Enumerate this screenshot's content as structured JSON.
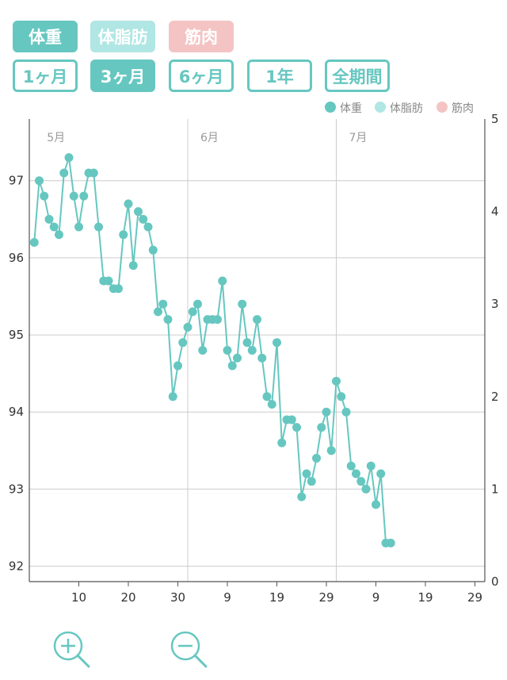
{
  "metrics": {
    "weight": "体重",
    "body_fat": "体脂肪",
    "muscle": "筋肉"
  },
  "periods": {
    "one_month": "1ヶ月",
    "three_months": "3ヶ月",
    "six_months": "6ヶ月",
    "one_year": "1年",
    "all": "全期間",
    "selected": "3ヶ月"
  },
  "colors": {
    "weight": "#66c7c0",
    "body_fat": "#b0e6e3",
    "muscle": "#f4c4c4",
    "grid": "#cccccc",
    "label": "#999999"
  },
  "icons": {
    "zoom_in": "zoom-in-icon",
    "zoom_out": "zoom-out-icon"
  },
  "chart_data": {
    "type": "line",
    "legend": [
      "体重",
      "体脂肪",
      "筋肉"
    ],
    "legend_position": "top-right",
    "month_labels": [
      "5月",
      "6月",
      "7月"
    ],
    "x_tick_labels": [
      "10",
      "20",
      "30",
      "9",
      "19",
      "29",
      "9",
      "19",
      "29"
    ],
    "y_left_ticks": [
      "92",
      "93",
      "94",
      "95",
      "96",
      "97"
    ],
    "y_right_ticks": [
      "0",
      "1",
      "2",
      "3",
      "4",
      "5"
    ],
    "y_left_range": [
      91.8,
      97.8
    ],
    "y_right_range": [
      0,
      5
    ],
    "grid": true,
    "x_axis": "date",
    "x_range": [
      "2020-04-30",
      "2020-07-29"
    ],
    "series": [
      {
        "name": "体重",
        "points": [
          [
            "2020-05-01",
            96.2
          ],
          [
            "2020-05-02",
            97.0
          ],
          [
            "2020-05-03",
            96.8
          ],
          [
            "2020-05-04",
            96.5
          ],
          [
            "2020-05-05",
            96.4
          ],
          [
            "2020-05-06",
            96.3
          ],
          [
            "2020-05-07",
            97.1
          ],
          [
            "2020-05-08",
            97.3
          ],
          [
            "2020-05-09",
            96.8
          ],
          [
            "2020-05-10",
            96.4
          ],
          [
            "2020-05-11",
            96.8
          ],
          [
            "2020-05-12",
            97.1
          ],
          [
            "2020-05-13",
            97.1
          ],
          [
            "2020-05-14",
            96.4
          ],
          [
            "2020-05-15",
            95.7
          ],
          [
            "2020-05-16",
            95.7
          ],
          [
            "2020-05-17",
            95.6
          ],
          [
            "2020-05-18",
            95.6
          ],
          [
            "2020-05-19",
            96.3
          ],
          [
            "2020-05-20",
            96.7
          ],
          [
            "2020-05-21",
            95.9
          ],
          [
            "2020-05-22",
            96.6
          ],
          [
            "2020-05-23",
            96.5
          ],
          [
            "2020-05-24",
            96.4
          ],
          [
            "2020-05-25",
            96.1
          ],
          [
            "2020-05-26",
            95.3
          ],
          [
            "2020-05-27",
            95.4
          ],
          [
            "2020-05-28",
            95.2
          ],
          [
            "2020-05-29",
            94.2
          ],
          [
            "2020-05-30",
            94.6
          ],
          [
            "2020-05-31",
            94.9
          ],
          [
            "2020-06-01",
            95.1
          ],
          [
            "2020-06-02",
            95.3
          ],
          [
            "2020-06-03",
            95.4
          ],
          [
            "2020-06-04",
            94.8
          ],
          [
            "2020-06-05",
            95.2
          ],
          [
            "2020-06-06",
            95.2
          ],
          [
            "2020-06-07",
            95.2
          ],
          [
            "2020-06-08",
            95.7
          ],
          [
            "2020-06-09",
            94.8
          ],
          [
            "2020-06-10",
            94.6
          ],
          [
            "2020-06-11",
            94.7
          ],
          [
            "2020-06-12",
            95.4
          ],
          [
            "2020-06-13",
            94.9
          ],
          [
            "2020-06-14",
            94.8
          ],
          [
            "2020-06-15",
            95.2
          ],
          [
            "2020-06-16",
            94.7
          ],
          [
            "2020-06-17",
            94.2
          ],
          [
            "2020-06-18",
            94.1
          ],
          [
            "2020-06-19",
            94.9
          ],
          [
            "2020-06-20",
            93.6
          ],
          [
            "2020-06-21",
            93.9
          ],
          [
            "2020-06-22",
            93.9
          ],
          [
            "2020-06-23",
            93.8
          ],
          [
            "2020-06-24",
            92.9
          ],
          [
            "2020-06-25",
            93.2
          ],
          [
            "2020-06-26",
            93.1
          ],
          [
            "2020-06-27",
            93.4
          ],
          [
            "2020-06-28",
            93.8
          ],
          [
            "2020-06-29",
            94.0
          ],
          [
            "2020-06-30",
            93.5
          ],
          [
            "2020-07-01",
            94.4
          ],
          [
            "2020-07-02",
            94.2
          ],
          [
            "2020-07-03",
            94.0
          ],
          [
            "2020-07-04",
            93.3
          ],
          [
            "2020-07-05",
            93.2
          ],
          [
            "2020-07-06",
            93.1
          ],
          [
            "2020-07-07",
            93.0
          ],
          [
            "2020-07-08",
            93.3
          ],
          [
            "2020-07-09",
            92.8
          ],
          [
            "2020-07-10",
            93.2
          ],
          [
            "2020-07-11",
            92.3
          ],
          [
            "2020-07-12",
            92.3
          ]
        ]
      }
    ]
  }
}
